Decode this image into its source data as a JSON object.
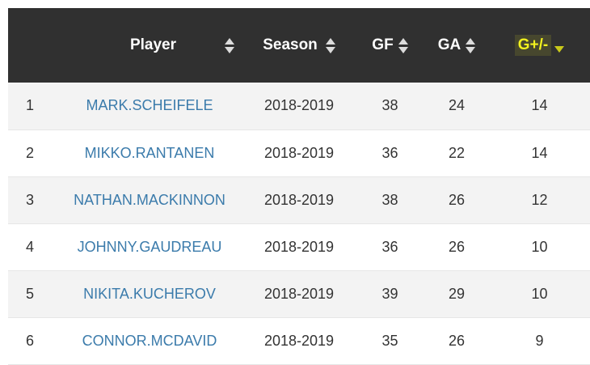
{
  "table": {
    "headers": {
      "rank": "",
      "player": "Player",
      "season": "Season",
      "gf": "GF",
      "ga": "GA",
      "gpm": "G+/-"
    },
    "sort": {
      "active_column": "G+/-",
      "direction": "descending",
      "active_color": "#f2f21e"
    },
    "rows": [
      {
        "rank": "1",
        "player": "MARK.SCHEIFELE",
        "season": "2018-2019",
        "gf": "38",
        "ga": "24",
        "gpm": "14"
      },
      {
        "rank": "2",
        "player": "MIKKO.RANTANEN",
        "season": "2018-2019",
        "gf": "36",
        "ga": "22",
        "gpm": "14"
      },
      {
        "rank": "3",
        "player": "NATHAN.MACKINNON",
        "season": "2018-2019",
        "gf": "38",
        "ga": "26",
        "gpm": "12"
      },
      {
        "rank": "4",
        "player": "JOHNNY.GAUDREAU",
        "season": "2018-2019",
        "gf": "36",
        "ga": "26",
        "gpm": "10"
      },
      {
        "rank": "5",
        "player": "NIKITA.KUCHEROV",
        "season": "2018-2019",
        "gf": "39",
        "ga": "29",
        "gpm": "10"
      },
      {
        "rank": "6",
        "player": "CONNOR.MCDAVID",
        "season": "2018-2019",
        "gf": "35",
        "ga": "26",
        "gpm": "9"
      }
    ]
  },
  "icons": {
    "sort_both": "sort-up-down-icon",
    "sort_desc": "sort-descending-icon"
  },
  "colors": {
    "header_bg": "#303030",
    "link": "#3b7bab",
    "row_stripe": "#f3f3f3"
  }
}
